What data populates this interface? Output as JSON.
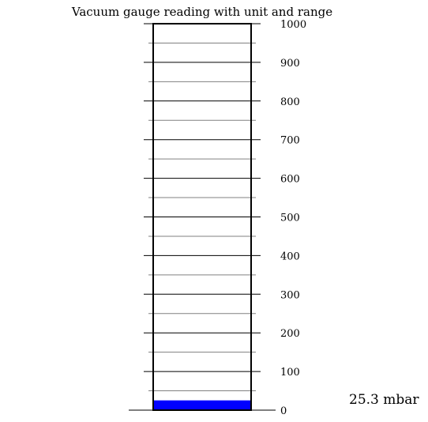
{
  "chart_data": {
    "type": "bar",
    "title": "Vacuum gauge reading with unit and range",
    "value": 25.3,
    "unit": "mbar",
    "reading_label": "25.3 mbar",
    "range": [
      0,
      1000
    ],
    "major_ticks": [
      0,
      100,
      200,
      300,
      400,
      500,
      600,
      700,
      800,
      900,
      1000
    ],
    "tick_labels": [
      "0",
      "100",
      "200",
      "300",
      "400",
      "500",
      "600",
      "700",
      "800",
      "900",
      "1000"
    ],
    "minor_ticks": [
      50,
      150,
      250,
      350,
      450,
      550,
      650,
      750,
      850,
      950
    ],
    "fill_color": "#0000ff",
    "frame_color": "#000000"
  }
}
